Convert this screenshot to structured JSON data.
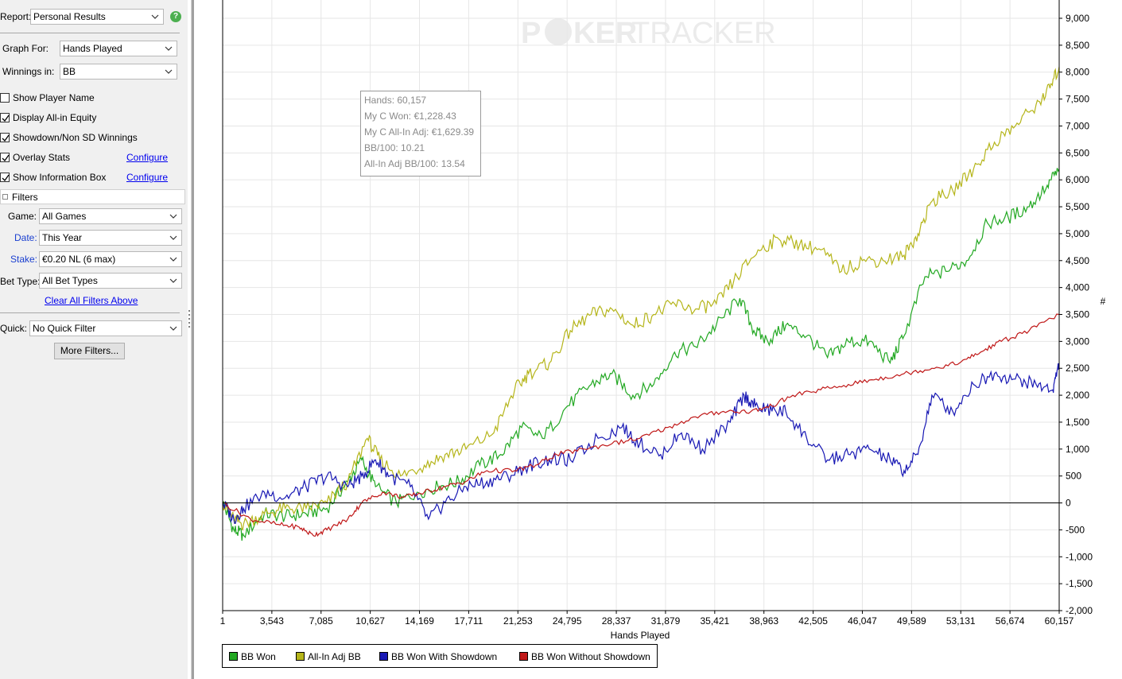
{
  "sidebar": {
    "report_label": "Report:",
    "report_value": "Personal Results",
    "graph_for_label": "Graph For:",
    "graph_for_value": "Hands Played",
    "winnings_in_label": "Winnings in:",
    "winnings_in_value": "BB",
    "checkboxes": [
      {
        "label": "Show Player Name",
        "checked": false
      },
      {
        "label": "Display All-in Equity",
        "checked": true
      },
      {
        "label": "Showdown/Non SD Winnings",
        "checked": true
      },
      {
        "label": "Overlay Stats",
        "checked": true,
        "link": "Configure"
      },
      {
        "label": "Show Information Box",
        "checked": true,
        "link": "Configure"
      }
    ],
    "filters_header": "Filters",
    "game_label": "Game:",
    "game_value": "All Games",
    "date_label": "Date:",
    "date_value": "This Year",
    "stake_label": "Stake:",
    "stake_value": "€0.20 NL (6 max)",
    "bet_type_label": "Bet Type:",
    "bet_type_value": "All Bet Types",
    "clear_filters": "Clear All Filters Above",
    "quick_label": "Quick:",
    "quick_value": "No Quick Filter",
    "more_filters": "More Filters..."
  },
  "watermark": {
    "left": "P",
    "chip": "O",
    "mid": "KER",
    "right": "TRACKER"
  },
  "info_box": {
    "hands": "Hands: 60,157",
    "won": "My C Won: €1,228.43",
    "allin_adj": "My C All-In Adj: €1,629.39",
    "bb100": "BB/100: 10.21",
    "allin_bb100": "All-In Adj BB/100: 13.54"
  },
  "chart_data": {
    "type": "line",
    "xlabel": "Hands Played",
    "ylabel": "#",
    "xlim": [
      1,
      60157
    ],
    "ylim": [
      -2000,
      9000
    ],
    "x_ticks": [
      "1",
      "3,543",
      "7,085",
      "10,627",
      "14,169",
      "17,711",
      "21,253",
      "24,795",
      "28,337",
      "31,879",
      "35,421",
      "38,963",
      "42,505",
      "46,047",
      "49,589",
      "53,131",
      "56,674",
      "60,157"
    ],
    "y_ticks": [
      -2000,
      -1500,
      -1000,
      -500,
      0,
      500,
      1000,
      1500,
      2000,
      2500,
      3000,
      3500,
      4000,
      4500,
      5000,
      5500,
      6000,
      6500,
      7000,
      7500,
      8000,
      8500,
      9000
    ],
    "y_tick_labels": [
      "-2,000",
      "-1,500",
      "-1,000",
      "-500",
      "0",
      "500",
      "1,000",
      "1,500",
      "2,000",
      "2,500",
      "3,000",
      "3,500",
      "4,000",
      "4,500",
      "5,000",
      "5,500",
      "6,000",
      "6,500",
      "7,000",
      "7,500",
      "8,000",
      "8,500",
      "9,000"
    ],
    "grid": true,
    "legend": "bottom-left",
    "series": [
      {
        "name": "BB Won",
        "color": "#22a822",
        "x": [
          1,
          800,
          1500,
          3000,
          4500,
          6000,
          7500,
          9000,
          10000,
          11000,
          12500,
          14000,
          15500,
          17000,
          18500,
          20000,
          21500,
          23000,
          24800,
          26500,
          28000,
          29500,
          31000,
          32500,
          34000,
          35500,
          37200,
          38200,
          39200,
          40500,
          42000,
          43500,
          45000,
          46500,
          48000,
          49000,
          50500,
          52000,
          53500,
          55000,
          56500,
          58000,
          59300,
          60157
        ],
        "y": [
          0,
          -500,
          -600,
          -200,
          -250,
          -200,
          -100,
          400,
          800,
          300,
          0,
          200,
          300,
          400,
          700,
          900,
          1400,
          1200,
          1800,
          2200,
          2400,
          2000,
          2200,
          2800,
          2900,
          3300,
          3800,
          3200,
          3000,
          3300,
          3100,
          2700,
          3000,
          3000,
          2600,
          3100,
          4200,
          4300,
          4500,
          5200,
          5300,
          5500,
          5900,
          6200
        ]
      },
      {
        "name": "All-In Adj BB",
        "color": "#b5b51a",
        "x": [
          1,
          800,
          1500,
          3000,
          4500,
          6000,
          7500,
          9000,
          10400,
          11300,
          12800,
          14500,
          16000,
          17500,
          19500,
          21000,
          22000,
          23500,
          25000,
          26500,
          28000,
          29500,
          31000,
          32500,
          34000,
          35500,
          37000,
          38500,
          40000,
          41500,
          43000,
          44500,
          46000,
          47500,
          49000,
          50000,
          51000,
          52500,
          54000,
          55500,
          57000,
          58500,
          59500,
          60157
        ],
        "y": [
          0,
          -300,
          -400,
          -200,
          -100,
          -100,
          0,
          400,
          1200,
          800,
          500,
          700,
          900,
          1000,
          1300,
          2100,
          2400,
          2600,
          3200,
          3500,
          3600,
          3300,
          3500,
          3700,
          3600,
          3700,
          4200,
          4700,
          4900,
          4800,
          4700,
          4300,
          4500,
          4500,
          4600,
          5000,
          5600,
          5800,
          6200,
          6700,
          7000,
          7400,
          7700,
          8100
        ]
      },
      {
        "name": "BB Won With Showdown",
        "color": "#1818b4",
        "x": [
          1,
          800,
          1500,
          3000,
          4500,
          6000,
          7500,
          9000,
          10000,
          11000,
          12000,
          13500,
          14800,
          16000,
          17500,
          19000,
          20500,
          22000,
          23500,
          25000,
          27000,
          28700,
          30000,
          31500,
          33000,
          34500,
          36500,
          37500,
          38300,
          39500,
          40500,
          42000,
          43500,
          45000,
          46500,
          48000,
          49000,
          50000,
          51000,
          52500,
          54000,
          55500,
          57000,
          58500,
          59700,
          60157
        ],
        "y": [
          0,
          -300,
          -100,
          200,
          100,
          300,
          500,
          300,
          500,
          800,
          500,
          300,
          -300,
          0,
          300,
          400,
          500,
          700,
          800,
          800,
          1200,
          1400,
          1100,
          900,
          1300,
          1000,
          1500,
          2000,
          1800,
          1700,
          1700,
          1200,
          800,
          900,
          1000,
          800,
          600,
          900,
          2000,
          1700,
          2200,
          2400,
          2300,
          2200,
          2100,
          2600
        ]
      },
      {
        "name": "BB Won Without Showdown",
        "color": "#c01818",
        "x": [
          1,
          2000,
          4000,
          5500,
          6500,
          7500,
          9000,
          10000,
          11500,
          13000,
          14500,
          16000,
          17500,
          19000,
          21000,
          22500,
          24000,
          26000,
          28000,
          30000,
          32000,
          34000,
          36000,
          38000,
          39500,
          41000,
          43000,
          45000,
          47000,
          49000,
          51000,
          53000,
          54500,
          56000,
          58000,
          60157
        ],
        "y": [
          0,
          -300,
          -400,
          -450,
          -600,
          -500,
          -300,
          0,
          200,
          100,
          200,
          300,
          400,
          600,
          600,
          700,
          900,
          1000,
          1100,
          1200,
          1400,
          1600,
          1700,
          1700,
          1800,
          2000,
          2100,
          2200,
          2300,
          2400,
          2500,
          2600,
          2800,
          3000,
          3200,
          3500
        ]
      }
    ]
  }
}
